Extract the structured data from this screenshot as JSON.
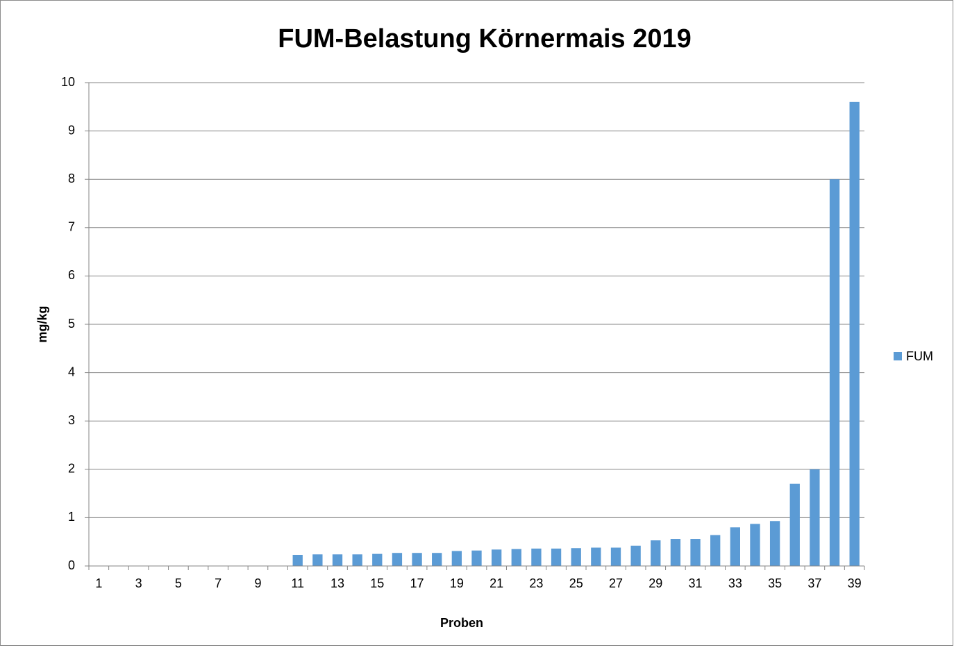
{
  "chart_data": {
    "type": "bar",
    "title": "FUM-Belastung Körnermais 2019",
    "x_label": "Proben",
    "y_label": "mg/kg",
    "categories": [
      "1",
      null,
      "3",
      null,
      "5",
      null,
      "7",
      null,
      "9",
      null,
      "11",
      null,
      "13",
      null,
      "15",
      null,
      "17",
      null,
      "19",
      null,
      "21",
      null,
      "23",
      null,
      "25",
      null,
      "27",
      null,
      "29",
      null,
      "31",
      null,
      "33",
      null,
      "35",
      null,
      "37",
      null,
      "39"
    ],
    "series": [
      {
        "name": "FUM",
        "color": "#5b9bd5",
        "values": [
          0,
          0,
          0,
          0,
          0,
          0,
          0,
          0,
          0,
          0,
          0.23,
          0.24,
          0.24,
          0.24,
          0.25,
          0.27,
          0.27,
          0.27,
          0.31,
          0.32,
          0.34,
          0.35,
          0.36,
          0.36,
          0.37,
          0.38,
          0.38,
          0.42,
          0.53,
          0.56,
          0.56,
          0.64,
          0.8,
          0.87,
          0.93,
          1.7,
          2.0,
          8.0,
          9.6
        ]
      }
    ],
    "ylim": [
      0,
      10
    ],
    "yticks": [
      0,
      1,
      2,
      3,
      4,
      5,
      6,
      7,
      8,
      9,
      10
    ],
    "grid": true,
    "legend": "right"
  }
}
